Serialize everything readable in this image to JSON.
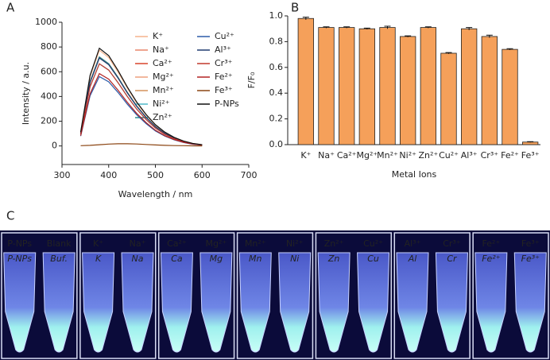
{
  "chart_data": [
    {
      "type": "line",
      "panel": "A",
      "x_label": "Wavelength / nm",
      "y_label": "Intensity / a.u.",
      "x": [
        340,
        360,
        380,
        400,
        420,
        440,
        460,
        480,
        500,
        520,
        540,
        560,
        580,
        600
      ],
      "xlim": [
        300,
        700
      ],
      "xticks": [
        300,
        400,
        500,
        600,
        700
      ],
      "ylim": [
        -150,
        1000
      ],
      "yticks": [
        0,
        200,
        400,
        600,
        800,
        1000
      ],
      "series": [
        {
          "name": "K⁺",
          "color": "#f6b38a",
          "values": [
            110,
            559,
            774,
            715,
            598,
            466,
            348,
            250,
            169,
            110,
            69,
            39,
            20,
            10
          ]
        },
        {
          "name": "Na⁺",
          "color": "#e8866a",
          "values": [
            102,
            519,
            719,
            664,
            555,
            432,
            323,
            232,
            157,
            102,
            64,
            36,
            18,
            9
          ]
        },
        {
          "name": "Ca²⁺",
          "color": "#d9422b",
          "values": [
            102,
            519,
            719,
            664,
            555,
            432,
            323,
            232,
            157,
            102,
            64,
            36,
            18,
            9
          ]
        },
        {
          "name": "Mg²⁺",
          "color": "#eea07e",
          "values": [
            101,
            513,
            711,
            657,
            549,
            428,
            320,
            230,
            155,
            101,
            63,
            36,
            18,
            9
          ]
        },
        {
          "name": "Mn²⁺",
          "color": "#d4935a",
          "values": [
            102,
            519,
            719,
            664,
            555,
            432,
            323,
            232,
            157,
            102,
            64,
            36,
            18,
            9
          ]
        },
        {
          "name": "Ni²⁺",
          "color": "#4fb8c8",
          "values": [
            94,
            479,
            664,
            613,
            512,
            399,
            298,
            214,
            144,
            94,
            59,
            34,
            17,
            8
          ]
        },
        {
          "name": "Zn²⁺",
          "color": "#2a8f8f",
          "values": [
            102,
            519,
            719,
            664,
            555,
            432,
            323,
            232,
            157,
            102,
            64,
            36,
            18,
            9
          ]
        },
        {
          "name": "Cu²⁺",
          "color": "#2a5aa8",
          "values": [
            80,
            405,
            561,
            518,
            433,
            337,
            252,
            181,
            122,
            80,
            50,
            28,
            14,
            7
          ]
        },
        {
          "name": "Al³⁺",
          "color": "#1f3a70",
          "values": [
            101,
            513,
            711,
            657,
            549,
            428,
            320,
            230,
            155,
            101,
            63,
            36,
            18,
            9
          ]
        },
        {
          "name": "Cr³⁺",
          "color": "#c0392b",
          "values": [
            94,
            479,
            664,
            613,
            512,
            399,
            298,
            214,
            144,
            94,
            59,
            34,
            17,
            8
          ]
        },
        {
          "name": "Fe²⁺",
          "color": "#b22222",
          "values": [
            83,
            422,
            585,
            540,
            451,
            352,
            263,
            189,
            127,
            83,
            52,
            30,
            15,
            7
          ]
        },
        {
          "name": "Fe³⁺",
          "color": "#8b4513",
          "values": [
            2,
            5,
            10,
            15,
            18,
            18,
            16,
            12,
            8,
            5,
            3,
            2,
            1,
            0
          ]
        },
        {
          "name": "P-NPs",
          "color": "#111111",
          "values": [
            112,
            570,
            790,
            730,
            610,
            475,
            355,
            255,
            172,
            112,
            70,
            40,
            20,
            10
          ]
        }
      ]
    },
    {
      "type": "bar",
      "panel": "B",
      "x_label": "Metal Ions",
      "y_label": "F/F₀",
      "color": "#f5a05a",
      "categories": [
        "K⁺",
        "Na⁺",
        "Ca²⁺",
        "Mg²⁺",
        "Mn²⁺",
        "Ni²⁺",
        "Zn²⁺",
        "Cu²⁺",
        "Al³⁺",
        "Cr³⁺",
        "Fe²⁺",
        "Fe³⁺"
      ],
      "values": [
        0.98,
        0.91,
        0.91,
        0.9,
        0.91,
        0.84,
        0.91,
        0.71,
        0.9,
        0.84,
        0.74,
        0.02
      ],
      "errors": [
        0.01,
        0.005,
        0.005,
        0.005,
        0.01,
        0.005,
        0.005,
        0.005,
        0.01,
        0.01,
        0.005,
        0.003
      ],
      "ylim": [
        0,
        1
      ],
      "yticks": [
        {
          "value": 0,
          "label": "0.0"
        },
        0.2,
        0.4,
        0.6,
        0.8,
        {
          "value": 1,
          "label": "1.0"
        }
      ]
    }
  ],
  "photo": {
    "panel": "C",
    "tubes": [
      {
        "label": "P-NPs",
        "writing": "P-NPs"
      },
      {
        "label": "Blank",
        "writing": "Buf."
      },
      {
        "label": "K⁺",
        "writing": "K"
      },
      {
        "label": "Na⁺",
        "writing": "Na"
      },
      {
        "label": "Ca²⁺",
        "writing": "Ca"
      },
      {
        "label": "Mg²⁺",
        "writing": "Mg"
      },
      {
        "label": "Mn²⁺",
        "writing": "Mn"
      },
      {
        "label": "Ni²⁺",
        "writing": "Ni"
      },
      {
        "label": "Zn²⁺",
        "writing": "Zn"
      },
      {
        "label": "Cu²⁺",
        "writing": "Cu"
      },
      {
        "label": "Al³⁺",
        "writing": "Al"
      },
      {
        "label": "Cr³⁺",
        "writing": "Cr"
      },
      {
        "label": "Fe²⁺",
        "writing": "Fe²⁺"
      },
      {
        "label": "Fe³⁺",
        "writing": "Fe³⁺"
      }
    ]
  }
}
